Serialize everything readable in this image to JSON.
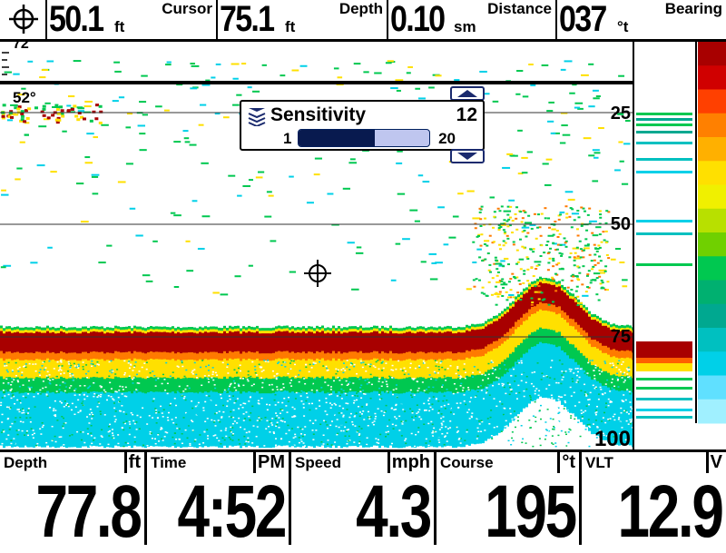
{
  "top_bar": {
    "cursor_icon": "crosshair-icon",
    "cursor_depth": {
      "value": "50.1",
      "unit": "ft",
      "label": "Cursor"
    },
    "depth": {
      "value": "75.1",
      "unit": "ft",
      "label": "Depth"
    },
    "distance": {
      "value": "0.10",
      "unit": "sm",
      "label": "Distance"
    },
    "bearing": {
      "value": "037",
      "unit": "°t",
      "label": "Bearing"
    }
  },
  "sonar": {
    "temperature": "52°",
    "top_depth_label": "72",
    "depth_labels": [
      "25",
      "50",
      "75",
      "100"
    ],
    "cursor_icon": "crosshair-icon"
  },
  "sensitivity_popup": {
    "title": "Sensitivity",
    "value": "12",
    "min": "1",
    "max": "20",
    "level_fraction": 0.58,
    "icon": "sensitivity-icon",
    "up_icon": "arrow-up-icon",
    "down_icon": "arrow-down-icon"
  },
  "bottom_bar": [
    {
      "label": "Depth",
      "unit": "ft",
      "value": "77.8"
    },
    {
      "label": "Time",
      "unit": "PM",
      "value": "4:52"
    },
    {
      "label": "Speed",
      "unit": "mph",
      "value": "4.3"
    },
    {
      "label": "Course",
      "unit": "°t",
      "value": "195"
    },
    {
      "label": "VLT",
      "unit": "V",
      "value": "12.9"
    }
  ],
  "colors": {
    "strong_return": "#a80000",
    "mid_return": "#ffe000",
    "weak_return": "#00c850",
    "faint_return": "#00d0e8",
    "popup_dark": "#081a4f",
    "popup_light": "#bfc6ef"
  }
}
